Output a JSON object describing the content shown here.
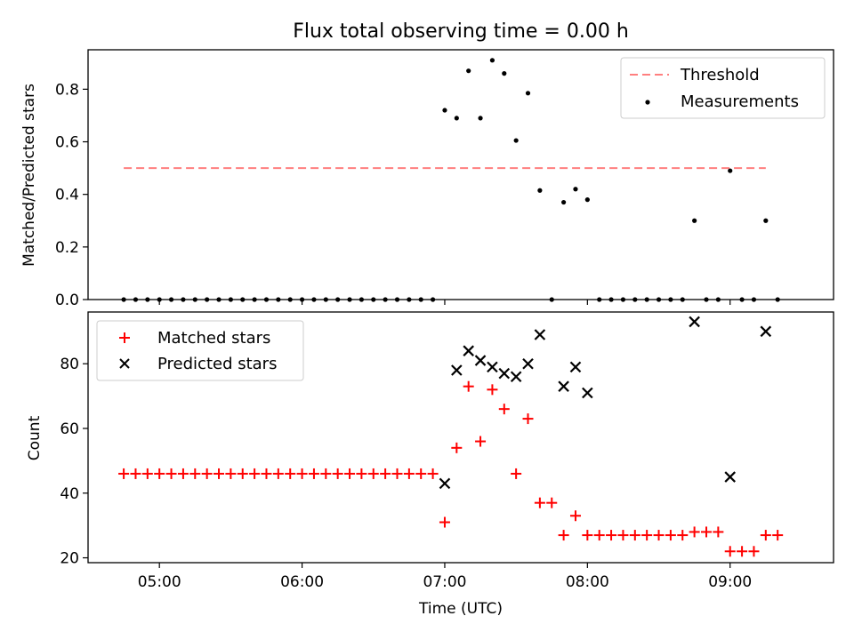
{
  "chart_data": {
    "title": "Flux total observing time = 0.00 h",
    "xlabel": "Time (UTC)",
    "x_ticks": [
      {
        "t": 300,
        "label": "05:00"
      },
      {
        "t": 360,
        "label": "06:00"
      },
      {
        "t": 420,
        "label": "07:00"
      },
      {
        "t": 480,
        "label": "08:00"
      },
      {
        "t": 540,
        "label": "09:00"
      }
    ],
    "xlim": [
      270.0,
      583.5
    ],
    "panels": [
      {
        "type": "scatter",
        "ylabel": "Matched/Predicted stars",
        "ylim": [
          0,
          0.95
        ],
        "y_ticks": [
          {
            "v": 0.0,
            "label": "0.0"
          },
          {
            "v": 0.2,
            "label": "0.2"
          },
          {
            "v": 0.4,
            "label": "0.4"
          },
          {
            "v": 0.6,
            "label": "0.6"
          },
          {
            "v": 0.8,
            "label": "0.8"
          }
        ],
        "legend_position": "top-right",
        "threshold": {
          "name": "Threshold",
          "value": 0.5,
          "x_start": 285,
          "x_end": 555,
          "color": "#ff7f7f"
        },
        "series": [
          {
            "name": "Measurements",
            "marker": "dot",
            "color": "#000000",
            "points": [
              [
                285,
                0
              ],
              [
                290,
                0
              ],
              [
                295,
                0
              ],
              [
                300,
                0
              ],
              [
                305,
                0
              ],
              [
                310,
                0
              ],
              [
                315,
                0
              ],
              [
                320,
                0
              ],
              [
                325,
                0
              ],
              [
                330,
                0
              ],
              [
                335,
                0
              ],
              [
                340,
                0
              ],
              [
                345,
                0
              ],
              [
                350,
                0
              ],
              [
                355,
                0
              ],
              [
                360,
                0
              ],
              [
                365,
                0
              ],
              [
                370,
                0
              ],
              [
                375,
                0
              ],
              [
                380,
                0
              ],
              [
                385,
                0
              ],
              [
                390,
                0
              ],
              [
                395,
                0
              ],
              [
                400,
                0
              ],
              [
                405,
                0
              ],
              [
                410,
                0
              ],
              [
                415,
                0
              ],
              [
                420,
                0.72
              ],
              [
                425,
                0.69
              ],
              [
                430,
                0.87
              ],
              [
                435,
                0.69
              ],
              [
                440,
                0.91
              ],
              [
                445,
                0.86
              ],
              [
                450,
                0.605
              ],
              [
                455,
                0.785
              ],
              [
                460,
                0.415
              ],
              [
                465,
                0
              ],
              [
                470,
                0.37
              ],
              [
                475,
                0.42
              ],
              [
                480,
                0.38
              ],
              [
                485,
                0
              ],
              [
                490,
                0
              ],
              [
                495,
                0
              ],
              [
                500,
                0
              ],
              [
                505,
                0
              ],
              [
                510,
                0
              ],
              [
                515,
                0
              ],
              [
                520,
                0
              ],
              [
                525,
                0.3
              ],
              [
                530,
                0
              ],
              [
                535,
                0
              ],
              [
                540,
                0.49
              ],
              [
                545,
                0
              ],
              [
                550,
                0
              ],
              [
                555,
                0.3
              ],
              [
                560,
                0
              ]
            ]
          }
        ]
      },
      {
        "type": "scatter",
        "ylabel": "Count",
        "ylim": [
          18.5,
          96
        ],
        "y_ticks": [
          {
            "v": 20,
            "label": "20"
          },
          {
            "v": 40,
            "label": "40"
          },
          {
            "v": 60,
            "label": "60"
          },
          {
            "v": 80,
            "label": "80"
          }
        ],
        "legend_position": "top-left",
        "series": [
          {
            "name": "Matched stars",
            "marker": "plus",
            "color": "#ff0000",
            "points": [
              [
                285,
                46
              ],
              [
                290,
                46
              ],
              [
                295,
                46
              ],
              [
                300,
                46
              ],
              [
                305,
                46
              ],
              [
                310,
                46
              ],
              [
                315,
                46
              ],
              [
                320,
                46
              ],
              [
                325,
                46
              ],
              [
                330,
                46
              ],
              [
                335,
                46
              ],
              [
                340,
                46
              ],
              [
                345,
                46
              ],
              [
                350,
                46
              ],
              [
                355,
                46
              ],
              [
                360,
                46
              ],
              [
                365,
                46
              ],
              [
                370,
                46
              ],
              [
                375,
                46
              ],
              [
                380,
                46
              ],
              [
                385,
                46
              ],
              [
                390,
                46
              ],
              [
                395,
                46
              ],
              [
                400,
                46
              ],
              [
                405,
                46
              ],
              [
                410,
                46
              ],
              [
                415,
                46
              ],
              [
                420,
                31
              ],
              [
                425,
                54
              ],
              [
                430,
                73
              ],
              [
                435,
                56
              ],
              [
                440,
                72
              ],
              [
                445,
                66
              ],
              [
                450,
                46
              ],
              [
                455,
                63
              ],
              [
                460,
                37
              ],
              [
                465,
                37
              ],
              [
                470,
                27
              ],
              [
                475,
                33
              ],
              [
                480,
                27
              ],
              [
                485,
                27
              ],
              [
                490,
                27
              ],
              [
                495,
                27
              ],
              [
                500,
                27
              ],
              [
                505,
                27
              ],
              [
                510,
                27
              ],
              [
                515,
                27
              ],
              [
                520,
                27
              ],
              [
                525,
                28
              ],
              [
                530,
                28
              ],
              [
                535,
                28
              ],
              [
                540,
                22
              ],
              [
                545,
                22
              ],
              [
                550,
                22
              ],
              [
                555,
                27
              ],
              [
                560,
                27
              ]
            ]
          },
          {
            "name": "Predicted stars",
            "marker": "x",
            "color": "#000000",
            "points": [
              [
                420,
                43
              ],
              [
                425,
                78
              ],
              [
                430,
                84
              ],
              [
                435,
                81
              ],
              [
                440,
                79
              ],
              [
                445,
                77
              ],
              [
                450,
                76
              ],
              [
                455,
                80
              ],
              [
                460,
                89
              ],
              [
                470,
                73
              ],
              [
                475,
                79
              ],
              [
                480,
                71
              ],
              [
                525,
                93
              ],
              [
                540,
                45
              ],
              [
                555,
                90
              ]
            ]
          }
        ]
      }
    ]
  }
}
